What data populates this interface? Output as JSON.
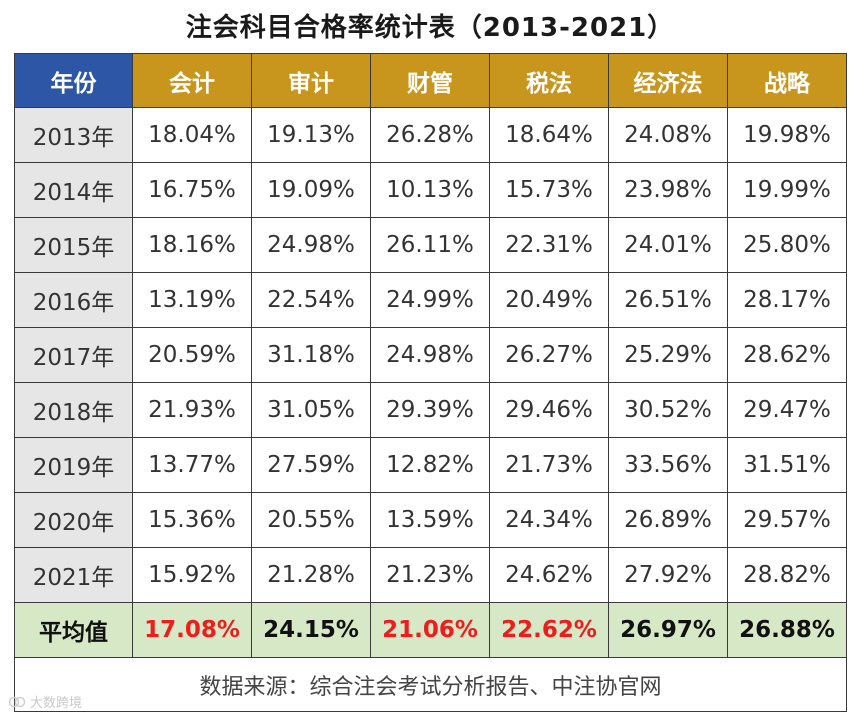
{
  "title": "注会科目合格率统计表（2013-2021）",
  "headers": [
    "年份",
    "会计",
    "审计",
    "财管",
    "税法",
    "经济法",
    "战略"
  ],
  "rows": [
    {
      "year": "2013年",
      "values": [
        "18.04%",
        "19.13%",
        "26.28%",
        "18.64%",
        "24.08%",
        "19.98%"
      ]
    },
    {
      "year": "2014年",
      "values": [
        "16.75%",
        "19.09%",
        "10.13%",
        "15.73%",
        "23.98%",
        "19.99%"
      ]
    },
    {
      "year": "2015年",
      "values": [
        "18.16%",
        "24.98%",
        "26.11%",
        "22.31%",
        "24.01%",
        "25.80%"
      ]
    },
    {
      "year": "2016年",
      "values": [
        "13.19%",
        "22.54%",
        "24.99%",
        "20.49%",
        "26.51%",
        "28.17%"
      ]
    },
    {
      "year": "2017年",
      "values": [
        "20.59%",
        "31.18%",
        "24.98%",
        "26.27%",
        "25.29%",
        "28.62%"
      ]
    },
    {
      "year": "2018年",
      "values": [
        "21.93%",
        "31.05%",
        "29.39%",
        "29.46%",
        "30.52%",
        "29.47%"
      ]
    },
    {
      "year": "2019年",
      "values": [
        "13.77%",
        "27.59%",
        "12.82%",
        "21.73%",
        "33.56%",
        "31.51%"
      ]
    },
    {
      "year": "2020年",
      "values": [
        "15.36%",
        "20.55%",
        "13.59%",
        "24.34%",
        "26.89%",
        "29.57%"
      ]
    },
    {
      "year": "2021年",
      "values": [
        "15.92%",
        "21.28%",
        "21.23%",
        "24.62%",
        "27.92%",
        "28.82%"
      ]
    }
  ],
  "average": {
    "label": "平均值",
    "values": [
      "17.08%",
      "24.15%",
      "21.06%",
      "22.62%",
      "26.97%",
      "26.88%"
    ],
    "highlighted": [
      true,
      false,
      true,
      true,
      false,
      false
    ],
    "highlight_color": "#ee1c1c"
  },
  "source": "数据来源：综合注会考试分析报告、中注协官网",
  "watermark": "大数跨境",
  "colors": {
    "year_header_bg": "#2e56a6",
    "subject_header_bg": "#c8961c",
    "year_cell_bg": "#e6e6e6",
    "average_row_bg": "#d6e8c6"
  }
}
